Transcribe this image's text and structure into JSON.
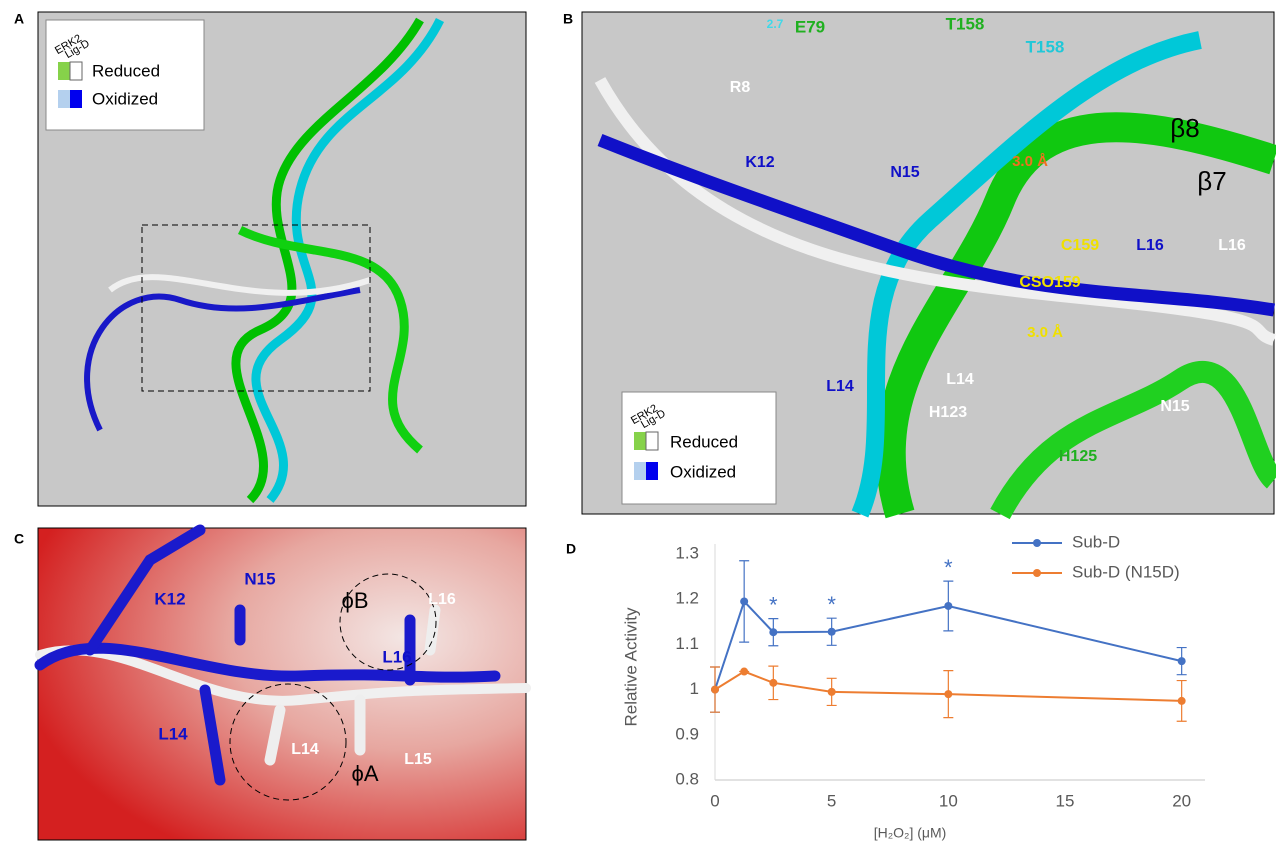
{
  "panels": [
    {
      "letter": "A",
      "legend": {
        "header": [
          "ERK2",
          "Lig-D"
        ],
        "entries": [
          "Reduced",
          "Oxidized"
        ]
      }
    },
    {
      "letter": "B",
      "labels": [
        "2.7",
        "E79",
        "T158",
        "T158",
        "R8",
        "K12",
        "N15",
        "3.0 Å",
        "β8",
        "β7",
        "C159",
        "L16",
        "L16",
        "CSO159",
        "3.0 Å",
        "L14",
        "L14",
        "H123",
        "N15",
        "H125"
      ],
      "legend": {
        "header": [
          "ERK2",
          "Lig-D"
        ],
        "entries": [
          "Reduced",
          "Oxidized"
        ]
      }
    },
    {
      "letter": "C",
      "labels": [
        "K12",
        "N15",
        "ϕB",
        "L16",
        "L16",
        "L14",
        "L14",
        "ϕA",
        "L15"
      ]
    },
    {
      "letter": "D"
    }
  ],
  "chart_data": {
    "type": "line",
    "x_label": "[H₂O₂] (μM)",
    "y_label": "Relative Activity",
    "x": [
      0,
      1.25,
      2.5,
      5,
      10,
      20
    ],
    "series": [
      {
        "name": "Sub-D",
        "color": "#4472c4",
        "values": [
          1.0,
          1.195,
          1.127,
          1.128,
          1.185,
          1.063
        ],
        "errors": [
          0.05,
          0.09,
          0.03,
          0.03,
          0.055,
          0.03
        ]
      },
      {
        "name": "Sub-D (N15D)",
        "color": "#ed7d31",
        "values": [
          1.0,
          1.04,
          1.015,
          0.995,
          0.99,
          0.975
        ],
        "errors": [
          0.05,
          0,
          0.037,
          0.03,
          0.052,
          0.045
        ]
      }
    ],
    "annotations": [
      {
        "text": "*",
        "x": 2.5
      },
      {
        "text": "*",
        "x": 5
      },
      {
        "text": "*",
        "x": 10
      }
    ],
    "xlim": [
      0,
      21
    ],
    "xticks": [
      0,
      5,
      10,
      15,
      20
    ],
    "ylim": [
      0.8,
      1.3
    ],
    "yticks": [
      0.8,
      0.9,
      1,
      1.1,
      1.2,
      1.3
    ],
    "legend": "top-right"
  }
}
